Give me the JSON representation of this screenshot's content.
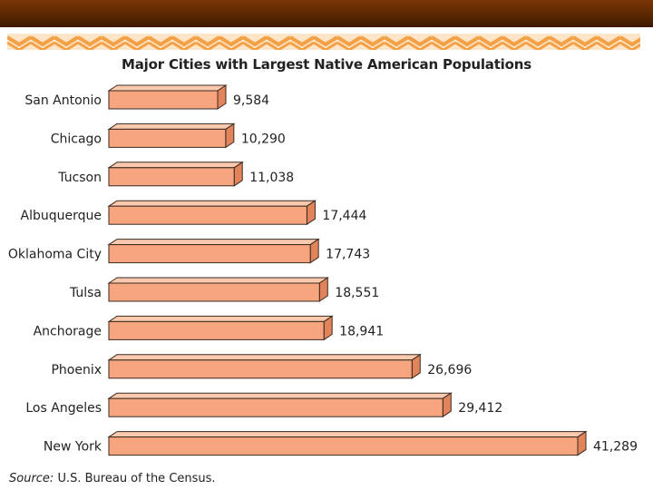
{
  "colors": {
    "top_bar": "#5a2702",
    "zigzag_stripe": "#f4a046",
    "zigzag_bg": "#fde6c8",
    "bar_front": "#f7a57f",
    "bar_top": "#fbc9ad",
    "bar_side": "#e2845b",
    "bar_outline": "#3a2a20"
  },
  "source": {
    "label": "Source:",
    "text": "U.S. Bureau of the Census."
  },
  "chart_data": {
    "type": "bar",
    "orientation": "horizontal",
    "title": "Major Cities with Largest Native American Populations",
    "categories": [
      "San Antonio",
      "Chicago",
      "Tucson",
      "Albuquerque",
      "Oklahoma City",
      "Tulsa",
      "Anchorage",
      "Phoenix",
      "Los Angeles",
      "New York"
    ],
    "values": [
      9584,
      10290,
      11038,
      17444,
      17743,
      18551,
      18941,
      26696,
      29412,
      41289
    ],
    "value_labels": [
      "9,584",
      "10,290",
      "11,038",
      "17,444",
      "17,743",
      "18,551",
      "18,941",
      "26,696",
      "29,412",
      "41,289"
    ],
    "xlabel": "",
    "ylabel": "",
    "xlim": [
      0,
      41289
    ],
    "grid": false,
    "legend": "none"
  }
}
